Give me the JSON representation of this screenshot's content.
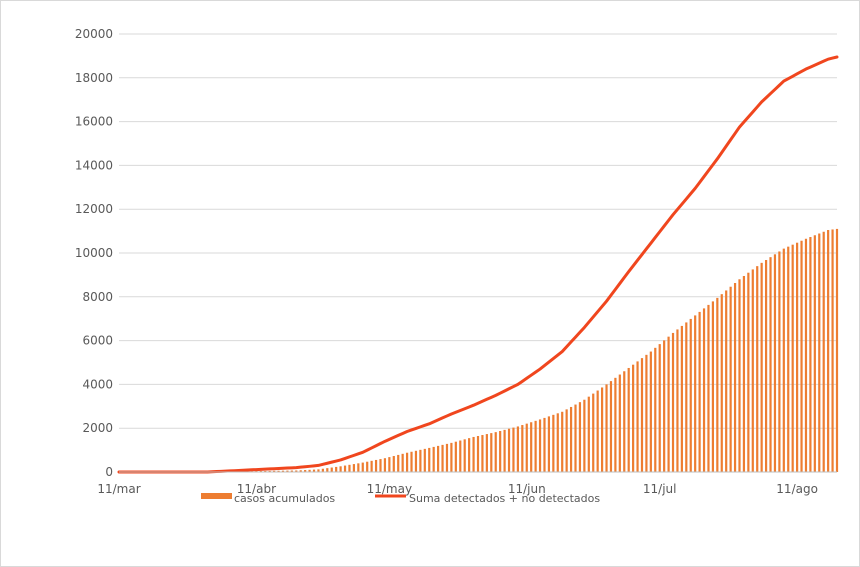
{
  "chart_data": {
    "type": "bar+line",
    "ylim": [
      0,
      20000
    ],
    "y_ticks": [
      "0",
      "2000",
      "4000",
      "6000",
      "8000",
      "10000",
      "12000",
      "14000",
      "16000",
      "18000",
      "20000"
    ],
    "x_range_days": [
      0,
      162
    ],
    "x_ticks": [
      {
        "day": 0,
        "label": "11/mar"
      },
      {
        "day": 31,
        "label": "11/abr"
      },
      {
        "day": 61,
        "label": "11/may"
      },
      {
        "day": 92,
        "label": "11/jun"
      },
      {
        "day": 122,
        "label": "11/jul"
      },
      {
        "day": 153,
        "label": "11/ago"
      }
    ],
    "grid": "horizontal",
    "legend_position": "bottom",
    "legend": [
      {
        "label": "casos acumulados",
        "color": "#ED7D31",
        "kind": "bar"
      },
      {
        "label": "Suma detectados + no detectados",
        "color": "#F0461E",
        "kind": "line"
      }
    ],
    "series": [
      {
        "name": "casos acumulados",
        "kind": "bar",
        "color": "#ED7D31",
        "points": [
          [
            0,
            0
          ],
          [
            20,
            5
          ],
          [
            40,
            70
          ],
          [
            45,
            120
          ],
          [
            50,
            260
          ],
          [
            55,
            430
          ],
          [
            60,
            630
          ],
          [
            65,
            880
          ],
          [
            70,
            1100
          ],
          [
            75,
            1330
          ],
          [
            80,
            1600
          ],
          [
            85,
            1820
          ],
          [
            90,
            2080
          ],
          [
            95,
            2400
          ],
          [
            100,
            2750
          ],
          [
            105,
            3300
          ],
          [
            110,
            4000
          ],
          [
            115,
            4750
          ],
          [
            120,
            5500
          ],
          [
            125,
            6350
          ],
          [
            130,
            7150
          ],
          [
            135,
            7950
          ],
          [
            140,
            8800
          ],
          [
            145,
            9550
          ],
          [
            150,
            10200
          ],
          [
            155,
            10650
          ],
          [
            160,
            11050
          ],
          [
            162,
            11100
          ]
        ]
      },
      {
        "name": "Suma detectados + no detectados",
        "kind": "line",
        "color": "#F0461E",
        "points": [
          [
            0,
            0
          ],
          [
            20,
            0
          ],
          [
            30,
            100
          ],
          [
            40,
            200
          ],
          [
            45,
            300
          ],
          [
            50,
            550
          ],
          [
            55,
            900
          ],
          [
            60,
            1400
          ],
          [
            65,
            1850
          ],
          [
            70,
            2200
          ],
          [
            75,
            2650
          ],
          [
            80,
            3050
          ],
          [
            85,
            3500
          ],
          [
            90,
            4000
          ],
          [
            95,
            4700
          ],
          [
            100,
            5500
          ],
          [
            105,
            6600
          ],
          [
            110,
            7800
          ],
          [
            115,
            9150
          ],
          [
            120,
            10450
          ],
          [
            125,
            11750
          ],
          [
            130,
            12950
          ],
          [
            135,
            14300
          ],
          [
            140,
            15750
          ],
          [
            145,
            16900
          ],
          [
            150,
            17850
          ],
          [
            155,
            18400
          ],
          [
            160,
            18850
          ],
          [
            162,
            18950
          ]
        ]
      }
    ]
  }
}
